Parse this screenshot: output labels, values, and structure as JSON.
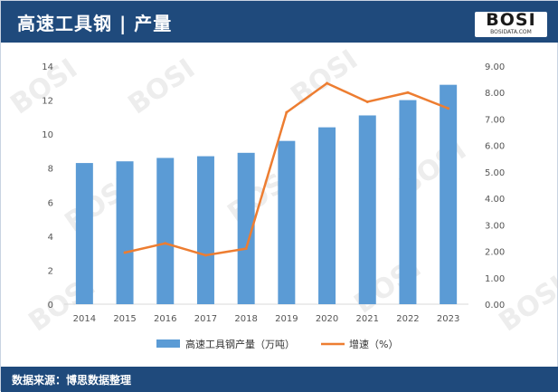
{
  "header": {
    "title": "高速工具钢 | 产量"
  },
  "logo": {
    "word": "BOSI",
    "sub": "BOSIDATA.COM"
  },
  "footer": {
    "source": "数据来源：博思数据整理"
  },
  "colors": {
    "header_bg": "#1f4a7c",
    "bar": "#5b9bd5",
    "line": "#ed7d31"
  },
  "chart_data": {
    "type": "bar+line",
    "categories": [
      "2014",
      "2015",
      "2016",
      "2017",
      "2018",
      "2019",
      "2020",
      "2021",
      "2022",
      "2023"
    ],
    "series": [
      {
        "name": "高速工具钢产量（万吨）",
        "type": "bar",
        "axis": "left",
        "values": [
          8.3,
          8.4,
          8.6,
          8.7,
          8.9,
          9.6,
          10.4,
          11.1,
          12.0,
          12.9
        ]
      },
      {
        "name": "增速（%）",
        "type": "line",
        "axis": "right",
        "values": [
          null,
          1.95,
          2.3,
          1.85,
          2.1,
          7.25,
          8.35,
          7.65,
          8.0,
          7.4
        ]
      }
    ],
    "y_left": {
      "min": 0,
      "max": 14,
      "ticks": [
        "0",
        "2",
        "4",
        "6",
        "8",
        "10",
        "12",
        "14"
      ]
    },
    "y_right": {
      "min": 0,
      "max": 9,
      "ticks": [
        "0.00",
        "1.00",
        "2.00",
        "3.00",
        "4.00",
        "5.00",
        "6.00",
        "7.00",
        "8.00",
        "9.00"
      ]
    },
    "legend_position": "bottom",
    "grid": false
  }
}
